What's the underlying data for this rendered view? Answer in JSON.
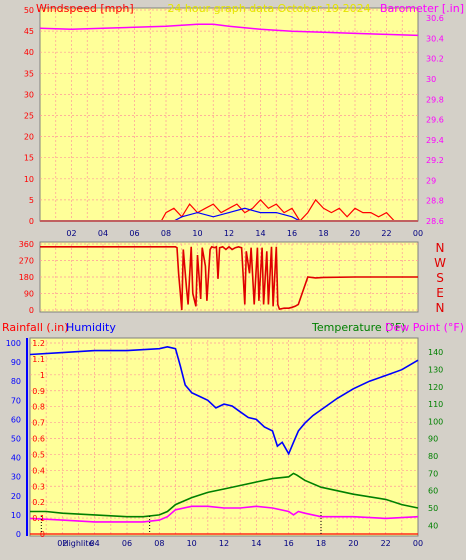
{
  "title": "24 hour graph data   October 19 2024",
  "colors": {
    "plot_bg": "#ffff99",
    "grid": "#ff9999",
    "frame": "#d4d0c8",
    "wind": "#ff0000",
    "gust": "#0000ff",
    "wind2": "#008000",
    "barometer": "#ff00ff",
    "direction": "#e00000",
    "humidity": "#0000ff",
    "temperature": "#008000",
    "dew_point": "#ff00ff",
    "rain": "#ff0000",
    "title": "#e5e500"
  },
  "icons": {
    "cursor": "vertical-dotted-marker-icon"
  },
  "chart_data": [
    {
      "type": "line",
      "title": "24 hour graph data   October 19 2024",
      "ylabel": "Windspeed [mph]",
      "y2label": "Barometer [.in]",
      "xlim": [
        0,
        24
      ],
      "x_ticks": [
        "02",
        "04",
        "06",
        "08",
        "10",
        "12",
        "14",
        "16",
        "18",
        "20",
        "22",
        "00"
      ],
      "ylim": [
        0,
        50
      ],
      "y_ticks": [
        "0",
        "5",
        "10",
        "15",
        "20",
        "25",
        "30",
        "35",
        "40",
        "45",
        "50"
      ],
      "y2lim": [
        28.6,
        30.7
      ],
      "y2_ticks": [
        "28.6",
        "28.8",
        "29",
        "29.2",
        "29.4",
        "29.6",
        "29.8",
        "30",
        "30.2",
        "30.4",
        "30.6"
      ],
      "grid": true,
      "series": [
        {
          "name": "Barometer [.in]",
          "axis": "right",
          "x": [
            0,
            2,
            4,
            6,
            8,
            9,
            10,
            11,
            12,
            14,
            16,
            18,
            20,
            22,
            24
          ],
          "values": [
            30.5,
            30.49,
            30.5,
            30.51,
            30.52,
            30.53,
            30.54,
            30.54,
            30.52,
            30.49,
            30.47,
            30.46,
            30.45,
            30.44,
            30.43
          ]
        },
        {
          "name": "Windspeed [mph]",
          "axis": "left",
          "x": [
            0,
            7.7,
            8.0,
            8.5,
            9.0,
            9.5,
            10.0,
            10.5,
            11.0,
            11.5,
            12.0,
            12.5,
            13.0,
            13.5,
            14.0,
            14.5,
            15.0,
            15.5,
            16.0,
            16.5,
            17.0,
            17.5,
            18.0,
            18.5,
            19.0,
            19.5,
            20.0,
            20.5,
            21.0,
            21.5,
            22.0,
            22.5,
            24
          ],
          "values": [
            0,
            0,
            2,
            3,
            1,
            4,
            2,
            3,
            4,
            2,
            3,
            4,
            2,
            3,
            5,
            3,
            4,
            2,
            3,
            0,
            2,
            5,
            3,
            2,
            3,
            1,
            3,
            2,
            2,
            1,
            2,
            0,
            0
          ]
        },
        {
          "name": "Gust",
          "axis": "left",
          "x": [
            0,
            8.5,
            9.0,
            10.0,
            11.0,
            12.0,
            13.0,
            14.0,
            15.0,
            16.0,
            16.5,
            24
          ],
          "values": [
            0,
            0,
            1,
            2,
            1,
            2,
            3,
            2,
            2,
            1,
            0,
            0
          ]
        }
      ]
    },
    {
      "type": "line",
      "xlim": [
        0,
        24
      ],
      "ylim": [
        0,
        360
      ],
      "y_ticks": [
        "0",
        "90",
        "180",
        "270",
        "360"
      ],
      "y2_ticks": [
        "N",
        "W",
        "S",
        "E",
        "N"
      ],
      "grid": true,
      "series": [
        {
          "name": "Wind direction",
          "x": [
            0,
            8.6,
            8.7,
            8.8,
            9.0,
            9.1,
            9.3,
            9.4,
            9.6,
            9.7,
            9.9,
            10.0,
            10.2,
            10.3,
            10.5,
            10.6,
            10.8,
            10.9,
            11.1,
            11.2,
            11.3,
            11.4,
            11.6,
            11.8,
            12.0,
            12.2,
            12.4,
            12.6,
            12.8,
            13.0,
            13.1,
            13.3,
            13.4,
            13.6,
            13.8,
            13.9,
            14.1,
            14.2,
            14.4,
            14.5,
            14.7,
            14.8,
            15.0,
            15.1,
            15.2,
            15.5,
            15.8,
            16.0,
            16.2,
            16.4,
            17.0,
            17.5,
            18.0,
            20.0,
            22.0,
            24.0
          ],
          "values": [
            345,
            345,
            340,
            200,
            0,
            330,
            120,
            30,
            345,
            90,
            20,
            300,
            60,
            340,
            240,
            50,
            330,
            345,
            340,
            345,
            170,
            340,
            345,
            330,
            345,
            330,
            340,
            345,
            340,
            30,
            320,
            200,
            340,
            30,
            340,
            50,
            340,
            30,
            320,
            30,
            345,
            20,
            345,
            30,
            5,
            10,
            10,
            15,
            20,
            30,
            180,
            175,
            178,
            180,
            180,
            180
          ]
        }
      ]
    },
    {
      "type": "line",
      "ylabel": "Rainfall (.in)",
      "ylabel2": "Humidity",
      "y2label": "Temperature (°F)",
      "y2label2": "Dew Point (°F)",
      "xlim": [
        0,
        24
      ],
      "x_ticks": [
        "Highlite",
        "02",
        "04",
        "06",
        "08",
        "10",
        "12",
        "14",
        "16",
        "18",
        "20",
        "22",
        "00"
      ],
      "y_ticks_rain": [
        "0",
        "0.1",
        "0.2",
        "0.3",
        "0.4",
        "0.5",
        "0.6",
        "0.7",
        "0.8",
        "0.9",
        "1",
        "1.1",
        "1.2"
      ],
      "y_ticks_hum": [
        "0",
        "10",
        "20",
        "30",
        "40",
        "50",
        "60",
        "70",
        "80",
        "90",
        "100"
      ],
      "y_ticks_temp": [
        "40",
        "50",
        "60",
        "70",
        "80",
        "90",
        "100",
        "110",
        "120",
        "130",
        "140"
      ],
      "ylim_rain": [
        0,
        1.2
      ],
      "ylim_hum": [
        0,
        100
      ],
      "ylim_temp": [
        35,
        147
      ],
      "grid": true,
      "series": [
        {
          "name": "Humidity",
          "axis": "humidity",
          "x": [
            0,
            2,
            4,
            6,
            8,
            8.5,
            9.0,
            9.3,
            9.6,
            10.0,
            10.5,
            11.0,
            11.5,
            12.0,
            12.5,
            13.0,
            13.5,
            14.0,
            14.5,
            15.0,
            15.3,
            15.6,
            16.0,
            16.3,
            16.6,
            17.0,
            17.5,
            18.0,
            19.0,
            20.0,
            21.0,
            22.0,
            23.0,
            24.0
          ],
          "values": [
            94,
            95,
            96,
            96,
            97,
            98,
            97,
            88,
            78,
            74,
            72,
            70,
            66,
            68,
            67,
            64,
            61,
            60,
            56,
            54,
            46,
            48,
            42,
            48,
            54,
            58,
            62,
            65,
            71,
            76,
            80,
            83,
            86,
            91
          ]
        },
        {
          "name": "Temperature (°F)",
          "axis": "temperature",
          "x": [
            0,
            1,
            2,
            4,
            6,
            7,
            8,
            8.5,
            9,
            10,
            11,
            12,
            13,
            14,
            15,
            16,
            16.3,
            16.5,
            17,
            18,
            20,
            22,
            23,
            24
          ],
          "values": [
            48,
            48,
            47,
            46,
            45,
            45,
            46,
            48,
            52,
            56,
            59,
            61,
            63,
            65,
            67,
            68,
            70,
            69,
            66,
            62,
            58,
            55,
            52,
            50
          ]
        },
        {
          "name": "Dew Point (°F)",
          "axis": "temperature",
          "x": [
            0,
            2,
            4,
            6,
            7,
            8,
            8.5,
            9,
            10,
            11,
            12,
            13,
            14,
            15,
            16,
            16.3,
            16.6,
            17,
            18,
            20,
            22,
            24
          ],
          "values": [
            44,
            43,
            42,
            42,
            42,
            43,
            45,
            49,
            51,
            51,
            50,
            50,
            51,
            50,
            48,
            46,
            48,
            47,
            45,
            45,
            44,
            45
          ]
        },
        {
          "name": "Rainfall (.in)",
          "axis": "rain",
          "x": [
            0,
            24
          ],
          "values": [
            0,
            0
          ]
        }
      ],
      "markers_x": [
        0.7,
        7.4
      ]
    }
  ]
}
